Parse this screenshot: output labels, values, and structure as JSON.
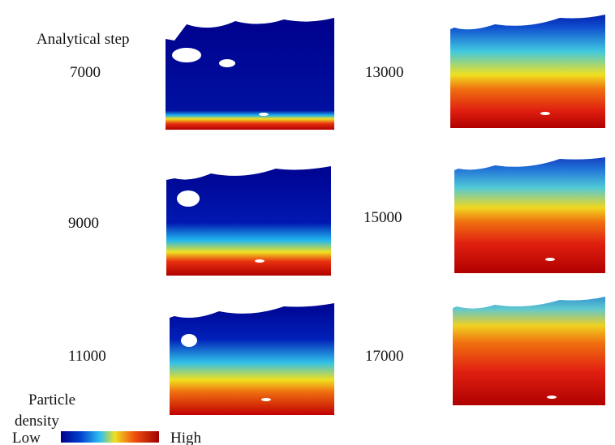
{
  "header": {
    "title": "Analytical step"
  },
  "panels": [
    {
      "label": "7000"
    },
    {
      "label": "9000"
    },
    {
      "label": "11000"
    },
    {
      "label": "13000"
    },
    {
      "label": "15000"
    },
    {
      "label": "17000"
    }
  ],
  "legend": {
    "title_line1": "Particle",
    "title_line2": "density",
    "low": "Low",
    "high": "High"
  }
}
